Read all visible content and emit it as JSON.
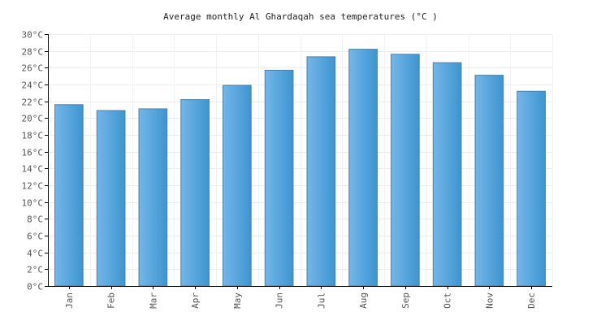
{
  "chart_data": {
    "type": "bar",
    "title": "Average monthly Al Ghardaqah sea temperatures (°C )",
    "xlabel": "",
    "ylabel": "",
    "categories": [
      "Jan",
      "Feb",
      "Mar",
      "Apr",
      "May",
      "Jun",
      "Jul",
      "Aug",
      "Sep",
      "Oct",
      "Nov",
      "Dec"
    ],
    "values": [
      21.6,
      20.9,
      21.1,
      22.2,
      23.9,
      25.7,
      27.3,
      28.2,
      27.6,
      26.6,
      25.1,
      23.2
    ],
    "ylim": [
      0,
      30
    ],
    "ytick_step": 2,
    "ytick_suffix": "°C",
    "grid": true,
    "legend": "none",
    "bar_color_light": "#74b6e8",
    "bar_color_dark": "#3d95d1",
    "bar_outline": "#4a7fa8"
  }
}
